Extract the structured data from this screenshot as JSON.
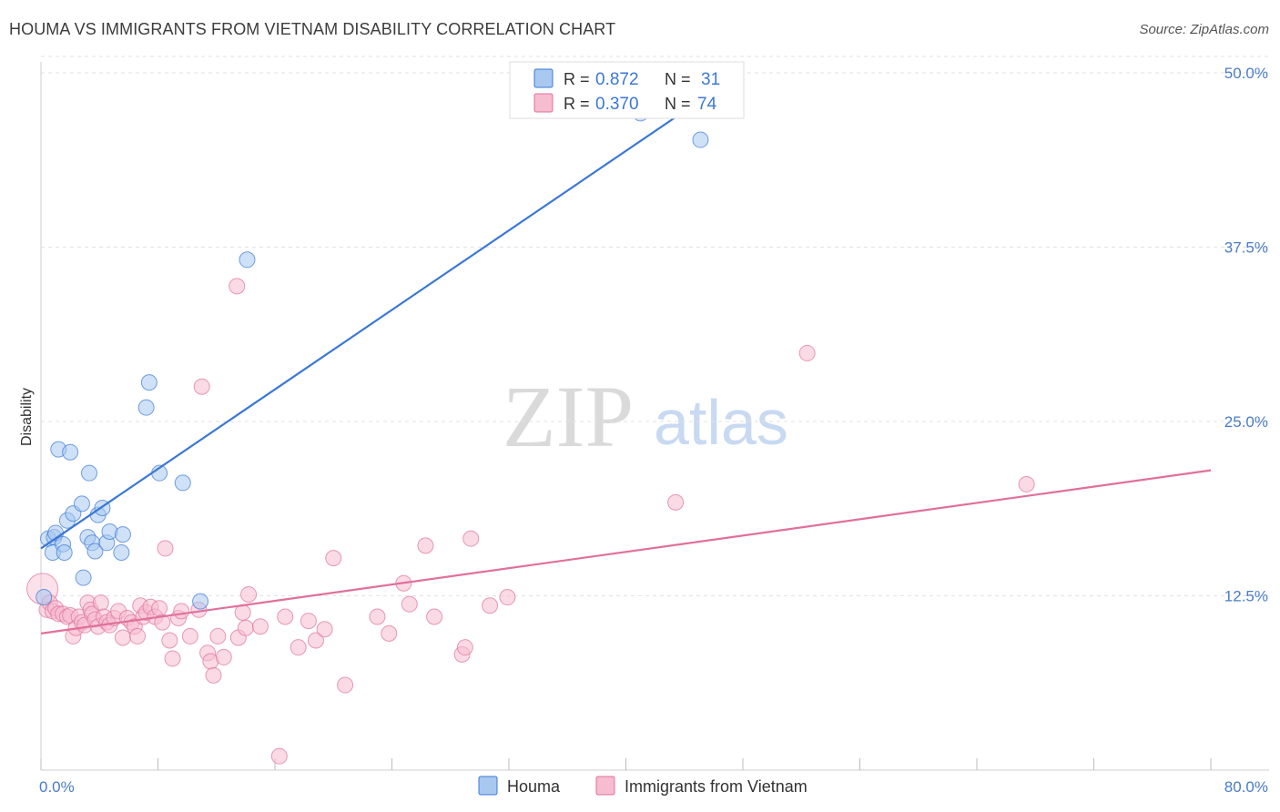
{
  "header": {
    "title": "HOUMA VS IMMIGRANTS FROM VIETNAM DISABILITY CORRELATION CHART",
    "source": "Source: ZipAtlas.com"
  },
  "watermark": {
    "zip": "ZIP",
    "atlas": "atlas"
  },
  "chart_data": {
    "type": "scatter",
    "title": "HOUMA VS IMMIGRANTS FROM VIETNAM DISABILITY CORRELATION CHART",
    "xlabel": "",
    "ylabel": "Disability",
    "xlim": [
      0,
      80
    ],
    "ylim": [
      0,
      50
    ],
    "x_tick_labels": {
      "min": "0.0%",
      "max": "80.0%"
    },
    "y_ticks": [
      {
        "value": 12.5,
        "label": "12.5%"
      },
      {
        "value": 25.0,
        "label": "25.0%"
      },
      {
        "value": 37.5,
        "label": "37.5%"
      },
      {
        "value": 50.0,
        "label": "50.0%"
      }
    ],
    "grid": true,
    "legend": "top-center",
    "series": [
      {
        "name": "Houma",
        "color": "#3b78d4",
        "fill": "#a8c8f0",
        "stats": {
          "r_label": "R =",
          "r_value": "0.872",
          "n_label": "N =",
          "n_value": "31"
        },
        "trend": {
          "x0": 0,
          "y0": 15.9,
          "x1": 48,
          "y1": 50.1,
          "x_end_dashed": 48
        },
        "points": [
          [
            0.2,
            12.4
          ],
          [
            0.5,
            16.6
          ],
          [
            0.8,
            15.6
          ],
          [
            0.9,
            16.7
          ],
          [
            1.0,
            17.0
          ],
          [
            1.2,
            23.0
          ],
          [
            1.5,
            16.2
          ],
          [
            1.6,
            15.6
          ],
          [
            1.8,
            17.9
          ],
          [
            2.0,
            22.8
          ],
          [
            2.2,
            18.4
          ],
          [
            2.8,
            19.1
          ],
          [
            2.9,
            13.8
          ],
          [
            3.2,
            16.7
          ],
          [
            3.3,
            21.3
          ],
          [
            3.5,
            16.3
          ],
          [
            3.7,
            15.7
          ],
          [
            3.9,
            18.3
          ],
          [
            4.2,
            18.8
          ],
          [
            4.5,
            16.3
          ],
          [
            4.7,
            17.1
          ],
          [
            5.5,
            15.6
          ],
          [
            5.6,
            16.9
          ],
          [
            7.2,
            26.0
          ],
          [
            7.4,
            27.8
          ],
          [
            8.1,
            21.3
          ],
          [
            9.7,
            20.6
          ],
          [
            10.9,
            12.1
          ],
          [
            14.1,
            36.6
          ],
          [
            41.0,
            47.1
          ],
          [
            45.1,
            45.2
          ]
        ]
      },
      {
        "name": "Immigrants from Vietnam",
        "color": "#e0709a",
        "fill": "#f6bcd0",
        "stats": {
          "r_label": "R =",
          "r_value": "0.370",
          "n_label": "N =",
          "n_value": "74"
        },
        "trend": {
          "x0": 0,
          "y0": 9.8,
          "x1": 80,
          "y1": 21.5
        },
        "points": [
          [
            0.1,
            13.0
          ],
          [
            0.4,
            11.5
          ],
          [
            0.6,
            12.0
          ],
          [
            0.8,
            11.4
          ],
          [
            1.0,
            11.6
          ],
          [
            1.2,
            11.2
          ],
          [
            1.5,
            11.2
          ],
          [
            1.8,
            11.0
          ],
          [
            2.0,
            11.1
          ],
          [
            2.2,
            9.6
          ],
          [
            2.4,
            10.2
          ],
          [
            2.6,
            11.0
          ],
          [
            2.8,
            10.6
          ],
          [
            3.0,
            10.4
          ],
          [
            3.2,
            12.0
          ],
          [
            3.4,
            11.5
          ],
          [
            3.5,
            11.2
          ],
          [
            3.7,
            10.8
          ],
          [
            3.9,
            10.3
          ],
          [
            4.1,
            12.0
          ],
          [
            4.3,
            11.0
          ],
          [
            4.5,
            10.6
          ],
          [
            4.7,
            10.4
          ],
          [
            5.0,
            10.9
          ],
          [
            5.3,
            11.4
          ],
          [
            5.6,
            9.5
          ],
          [
            5.9,
            10.9
          ],
          [
            6.2,
            10.6
          ],
          [
            6.4,
            10.3
          ],
          [
            6.6,
            9.6
          ],
          [
            6.8,
            11.8
          ],
          [
            7.0,
            11.0
          ],
          [
            7.2,
            11.3
          ],
          [
            7.5,
            11.7
          ],
          [
            7.8,
            11.0
          ],
          [
            8.1,
            11.6
          ],
          [
            8.3,
            10.6
          ],
          [
            8.5,
            15.9
          ],
          [
            8.8,
            9.3
          ],
          [
            9.0,
            8.0
          ],
          [
            9.4,
            10.9
          ],
          [
            9.6,
            11.4
          ],
          [
            10.2,
            9.6
          ],
          [
            10.8,
            11.5
          ],
          [
            11.0,
            27.5
          ],
          [
            11.4,
            8.4
          ],
          [
            11.6,
            7.8
          ],
          [
            11.8,
            6.8
          ],
          [
            12.1,
            9.6
          ],
          [
            12.5,
            8.1
          ],
          [
            13.4,
            34.7
          ],
          [
            13.5,
            9.5
          ],
          [
            13.8,
            11.3
          ],
          [
            14.0,
            10.2
          ],
          [
            14.2,
            12.6
          ],
          [
            15.0,
            10.3
          ],
          [
            16.3,
            1.0
          ],
          [
            16.7,
            11.0
          ],
          [
            17.6,
            8.8
          ],
          [
            18.3,
            10.7
          ],
          [
            18.8,
            9.3
          ],
          [
            19.4,
            10.1
          ],
          [
            20.0,
            15.2
          ],
          [
            20.8,
            6.1
          ],
          [
            23.0,
            11.0
          ],
          [
            23.8,
            9.8
          ],
          [
            24.8,
            13.4
          ],
          [
            25.2,
            11.9
          ],
          [
            26.3,
            16.1
          ],
          [
            26.9,
            11.0
          ],
          [
            28.8,
            8.3
          ],
          [
            29.0,
            8.8
          ],
          [
            29.4,
            16.6
          ],
          [
            30.7,
            11.8
          ],
          [
            31.9,
            12.4
          ],
          [
            43.4,
            19.2
          ],
          [
            52.4,
            29.9
          ],
          [
            67.4,
            20.5
          ]
        ]
      }
    ]
  },
  "legend_bottom": {
    "items": [
      {
        "label": "Houma"
      },
      {
        "label": "Immigrants from Vietnam"
      }
    ]
  }
}
